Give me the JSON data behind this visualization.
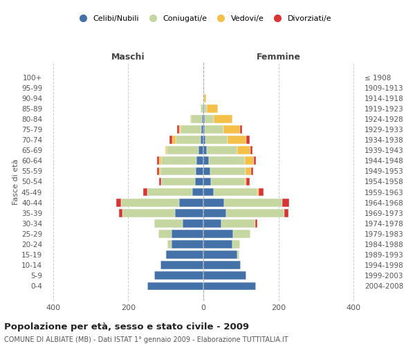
{
  "age_groups": [
    "0-4",
    "5-9",
    "10-14",
    "15-19",
    "20-24",
    "25-29",
    "30-34",
    "35-39",
    "40-44",
    "45-49",
    "50-54",
    "55-59",
    "60-64",
    "65-69",
    "70-74",
    "75-79",
    "80-84",
    "85-89",
    "90-94",
    "95-99",
    "100+"
  ],
  "birth_years": [
    "2004-2008",
    "1999-2003",
    "1994-1998",
    "1989-1993",
    "1984-1988",
    "1979-1983",
    "1974-1978",
    "1969-1973",
    "1964-1968",
    "1959-1963",
    "1954-1958",
    "1949-1953",
    "1944-1948",
    "1939-1943",
    "1934-1938",
    "1929-1933",
    "1924-1928",
    "1919-1923",
    "1914-1918",
    "1909-1913",
    "≤ 1908"
  ],
  "males": {
    "celibi": [
      150,
      130,
      115,
      100,
      85,
      85,
      55,
      75,
      65,
      30,
      22,
      20,
      18,
      12,
      8,
      5,
      3,
      2,
      0,
      0,
      0
    ],
    "coniugati": [
      0,
      0,
      0,
      2,
      10,
      35,
      75,
      140,
      155,
      120,
      90,
      95,
      95,
      85,
      65,
      55,
      30,
      5,
      2,
      0,
      0
    ],
    "vedovi": [
      0,
      0,
      0,
      0,
      0,
      0,
      0,
      0,
      0,
      0,
      0,
      3,
      5,
      5,
      10,
      5,
      2,
      0,
      0,
      0,
      0
    ],
    "divorziati": [
      0,
      0,
      0,
      0,
      0,
      0,
      0,
      10,
      12,
      10,
      5,
      5,
      5,
      0,
      8,
      5,
      0,
      0,
      0,
      0,
      0
    ]
  },
  "females": {
    "nubili": [
      140,
      115,
      100,
      90,
      78,
      80,
      48,
      60,
      55,
      28,
      20,
      18,
      15,
      10,
      5,
      3,
      3,
      2,
      0,
      0,
      0
    ],
    "coniugate": [
      0,
      0,
      0,
      5,
      20,
      45,
      90,
      155,
      155,
      115,
      90,
      95,
      95,
      80,
      60,
      50,
      25,
      8,
      2,
      0,
      0
    ],
    "vedove": [
      0,
      0,
      0,
      0,
      0,
      0,
      0,
      0,
      0,
      5,
      5,
      15,
      25,
      35,
      50,
      45,
      50,
      28,
      5,
      2,
      0
    ],
    "divorziate": [
      0,
      0,
      0,
      0,
      0,
      0,
      5,
      12,
      18,
      12,
      8,
      5,
      5,
      5,
      8,
      5,
      0,
      0,
      0,
      0,
      0
    ]
  },
  "colors": {
    "celibi": "#4472a8",
    "coniugati": "#c5d6a0",
    "vedovi": "#f5c04a",
    "divorziati": "#d93535"
  },
  "xlim": [
    -420,
    420
  ],
  "xticks": [
    -400,
    -200,
    0,
    200,
    400
  ],
  "xticklabels": [
    "400",
    "200",
    "0",
    "200",
    "400"
  ],
  "title": "Popolazione per età, sesso e stato civile - 2009",
  "subtitle": "COMUNE DI ALBIATE (MB) - Dati ISTAT 1° gennaio 2009 - Elaborazione TUTTITALIA.IT",
  "ylabel_left": "Fasce di età",
  "header_left": "Maschi",
  "header_right": "Femmine",
  "legend_labels": [
    "Celibi/Nubili",
    "Coniugati/e",
    "Vedovi/e",
    "Divorziati/e"
  ],
  "background_color": "#ffffff",
  "grid_color": "#cccccc"
}
